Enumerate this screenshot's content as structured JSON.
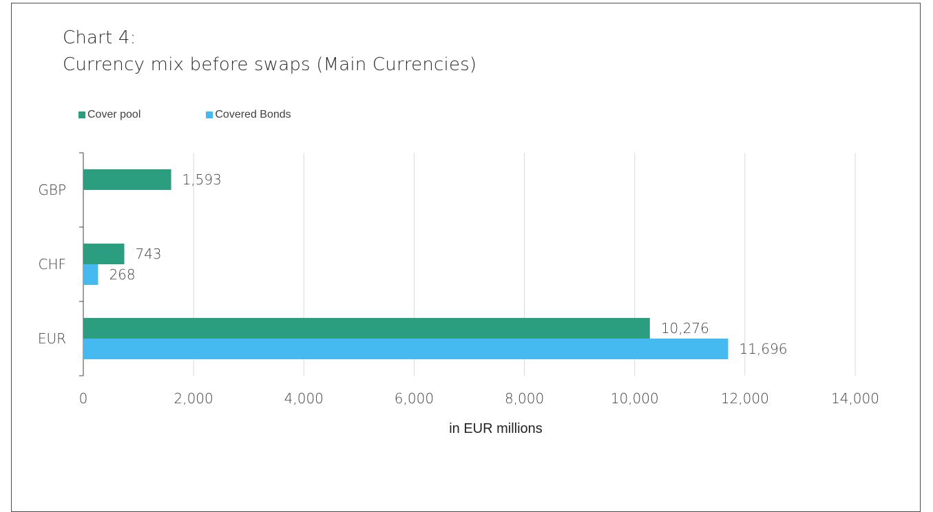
{
  "chart_data": {
    "type": "bar",
    "orientation": "horizontal",
    "title": "Chart 4:",
    "subtitle": "Currency mix before swaps (Main Currencies)",
    "xlabel": "in EUR millions",
    "ylabel": "",
    "categories": [
      "GBP",
      "CHF",
      "EUR"
    ],
    "series": [
      {
        "name": "Cover pool",
        "color": "#2a9e7f",
        "values": [
          1593,
          743,
          10276
        ],
        "labels": [
          "1,593",
          "743",
          "10,276"
        ]
      },
      {
        "name": "Covered Bonds",
        "color": "#44baf0",
        "values": [
          null,
          268,
          11696
        ],
        "labels": [
          "",
          "268",
          "11,696"
        ]
      }
    ],
    "xlim": [
      0,
      14000
    ],
    "xticks": [
      0,
      2000,
      4000,
      6000,
      8000,
      10000,
      12000,
      14000
    ],
    "xtick_labels": [
      "0",
      "2,000",
      "4,000",
      "6,000",
      "8,000",
      "10,000",
      "12,000",
      "14,000"
    ],
    "grid": true,
    "legend_position": "top-left"
  }
}
